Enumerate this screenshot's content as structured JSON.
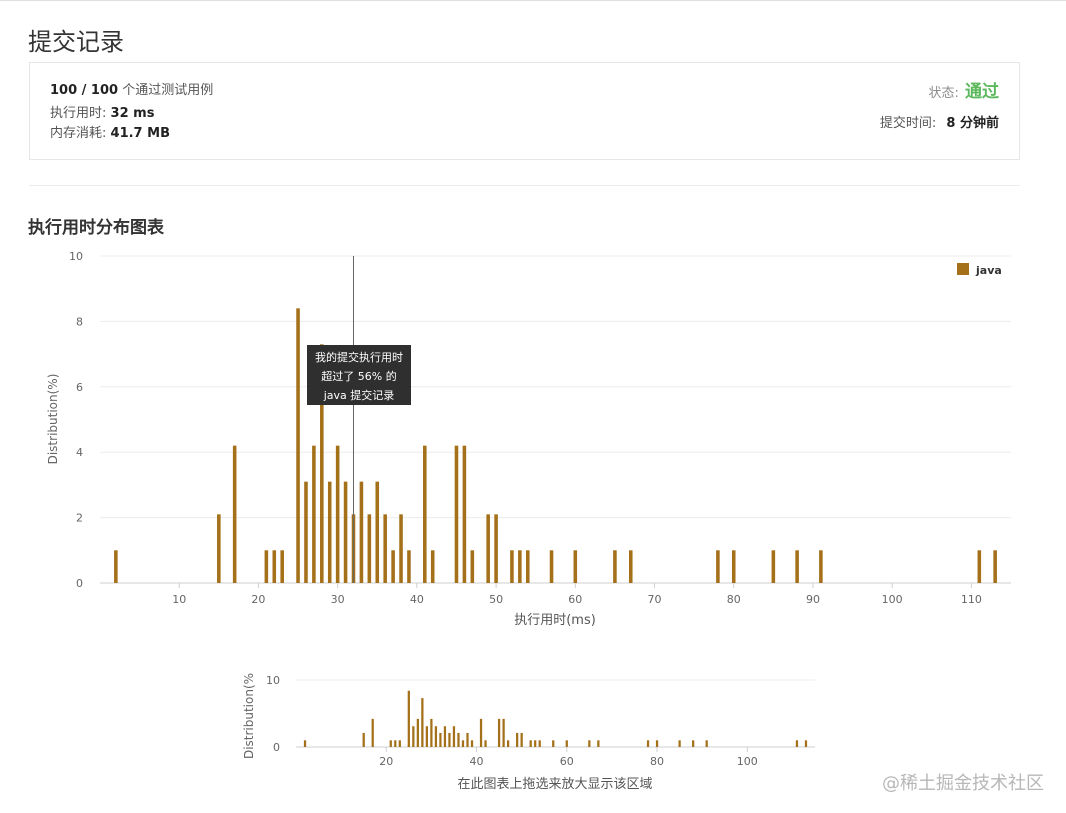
{
  "page": {
    "title": "提交记录"
  },
  "summary": {
    "tests_passed": "100 / 100",
    "tests_suffix": "个通过测试用例",
    "runtime_label": "执行用时:",
    "runtime_value": "32 ms",
    "memory_label": "内存消耗:",
    "memory_value": "41.7 MB",
    "status_label": "状态:",
    "status_value": "通过",
    "submit_time_label": "提交时间:",
    "submit_time_value": "8 分钟前"
  },
  "section": {
    "title": "执行用时分布图表"
  },
  "tooltip": {
    "line1": "我的提交执行用时",
    "line2": "超过了 56% 的",
    "line3": "java 提交记录"
  },
  "hint": "在此图表上拖选来放大显示该区域",
  "watermark": "@稀土掘金技术社区",
  "colors": {
    "bar": "#a4711a",
    "pass": "#5cb85c"
  },
  "chart_data": [
    {
      "type": "bar",
      "title": "",
      "xlabel": "执行用时(ms)",
      "ylabel": "Distribution(%)",
      "legend": {
        "entries": [
          "java"
        ],
        "placement": "top-right"
      },
      "xlim": [
        0,
        115
      ],
      "ylim": [
        0,
        10
      ],
      "xticks": [
        10,
        20,
        30,
        40,
        50,
        60,
        70,
        80,
        90,
        100,
        110
      ],
      "yticks": [
        0,
        2,
        4,
        6,
        8,
        10
      ],
      "grid": true,
      "marker_x": 32,
      "series": [
        {
          "name": "java",
          "x": [
            2,
            15,
            17,
            21,
            22,
            23,
            25,
            26,
            27,
            28,
            29,
            30,
            31,
            32,
            33,
            34,
            35,
            36,
            37,
            38,
            39,
            41,
            42,
            45,
            46,
            47,
            49,
            50,
            52,
            53,
            54,
            57,
            60,
            65,
            67,
            78,
            80,
            85,
            88,
            91,
            111,
            113
          ],
          "values": [
            1,
            2.1,
            4.2,
            1,
            1,
            1,
            8.4,
            3.1,
            4.2,
            7.3,
            3.1,
            4.2,
            3.1,
            2.1,
            3.1,
            2.1,
            3.1,
            2.1,
            1,
            2.1,
            1,
            4.2,
            1,
            4.2,
            4.2,
            1,
            2.1,
            2.1,
            1,
            1,
            1,
            1,
            1,
            1,
            1,
            1,
            1,
            1,
            1,
            1,
            1,
            1
          ]
        }
      ]
    },
    {
      "type": "bar",
      "title": "",
      "xlabel": "",
      "ylabel": "Distribution(%",
      "xlim": [
        0,
        115
      ],
      "ylim": [
        0,
        10
      ],
      "xticks": [
        20,
        40,
        60,
        80,
        100
      ],
      "yticks": [
        0,
        10
      ],
      "grid": true,
      "series_ref": "java"
    }
  ]
}
